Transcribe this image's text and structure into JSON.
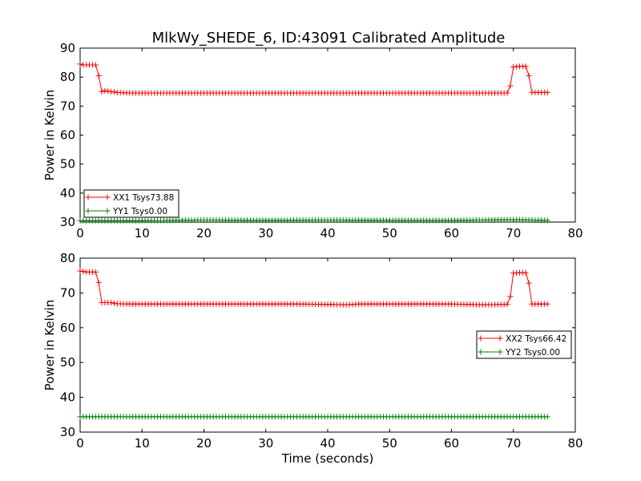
{
  "chart_data": [
    {
      "type": "line",
      "title": "MlkWy_SHEDE_6, ID:43091 Calibrated Amplitude",
      "xlabel": "",
      "ylabel": "Power in Kelvin",
      "xlim": [
        0,
        80
      ],
      "ylim": [
        30,
        90
      ],
      "xticks": [
        "0",
        "10",
        "20",
        "30",
        "40",
        "50",
        "60",
        "70",
        "80"
      ],
      "yticks": [
        "30",
        "40",
        "50",
        "60",
        "70",
        "80",
        "90"
      ],
      "grid": false,
      "legend_position": "lower-left",
      "marker": "+",
      "series": [
        {
          "name": "XX1 Tsys73.88",
          "color": "#ff0000",
          "x": [
            0.0,
            0.5,
            1.0,
            1.5,
            2.0,
            2.5,
            3.0,
            3.5,
            4.0,
            5.0,
            6.0,
            8.0,
            10.0,
            15.0,
            20.0,
            25.0,
            30.0,
            35.0,
            40.0,
            45.0,
            50.0,
            55.0,
            60.0,
            65.0,
            69.0,
            69.5,
            70.0,
            71.0,
            72.0,
            72.5,
            73.0,
            74.0,
            75.5
          ],
          "y": [
            84.5,
            84.2,
            84.2,
            84.2,
            84.2,
            84.2,
            80.5,
            75.0,
            75.3,
            75.0,
            74.7,
            74.5,
            74.5,
            74.5,
            74.5,
            74.5,
            74.5,
            74.5,
            74.5,
            74.5,
            74.5,
            74.5,
            74.5,
            74.5,
            74.5,
            77.0,
            83.5,
            83.7,
            83.7,
            80.5,
            74.7,
            74.7,
            74.7
          ]
        },
        {
          "name": "YY1 Tsys0.00",
          "color": "#008000",
          "x": [
            0.0,
            10.0,
            20.0,
            30.0,
            40.0,
            50.0,
            60.0,
            70.0,
            75.5
          ],
          "y": [
            30.5,
            30.5,
            30.7,
            30.6,
            30.7,
            30.6,
            30.6,
            30.8,
            30.6
          ]
        }
      ]
    },
    {
      "type": "line",
      "title": "",
      "xlabel": "Time (seconds)",
      "ylabel": "Power in Kelvin",
      "xlim": [
        0,
        80
      ],
      "ylim": [
        30,
        80
      ],
      "xticks": [
        "0",
        "10",
        "20",
        "30",
        "40",
        "50",
        "60",
        "70",
        "80"
      ],
      "yticks": [
        "30",
        "40",
        "50",
        "60",
        "70",
        "80"
      ],
      "grid": false,
      "legend_position": "center-right",
      "marker": "+",
      "series": [
        {
          "name": "XX2 Tsys66.42",
          "color": "#ff0000",
          "x": [
            0.0,
            0.5,
            1.0,
            1.5,
            2.0,
            2.5,
            3.0,
            3.5,
            4.0,
            5.0,
            6.0,
            8.0,
            10.0,
            15.0,
            20.0,
            25.0,
            30.0,
            35.0,
            40.0,
            43.0,
            45.0,
            50.0,
            55.0,
            60.0,
            65.0,
            69.0,
            69.5,
            70.0,
            71.0,
            72.0,
            72.5,
            73.0,
            74.0,
            75.5
          ],
          "y": [
            76.3,
            76.2,
            76.0,
            76.0,
            76.0,
            76.0,
            73.0,
            67.2,
            67.2,
            67.2,
            66.9,
            66.8,
            66.8,
            66.8,
            66.8,
            66.8,
            66.8,
            66.8,
            66.7,
            66.6,
            66.8,
            66.8,
            66.8,
            66.8,
            66.6,
            66.7,
            69.0,
            75.7,
            75.8,
            75.8,
            72.8,
            66.8,
            66.8,
            66.8
          ]
        },
        {
          "name": "YY2 Tsys0.00",
          "color": "#008000",
          "x": [
            0.0,
            10.0,
            20.0,
            30.0,
            40.0,
            50.0,
            60.0,
            70.0,
            75.5
          ],
          "y": [
            34.4,
            34.4,
            34.4,
            34.4,
            34.4,
            34.4,
            34.4,
            34.4,
            34.4
          ]
        }
      ]
    }
  ]
}
